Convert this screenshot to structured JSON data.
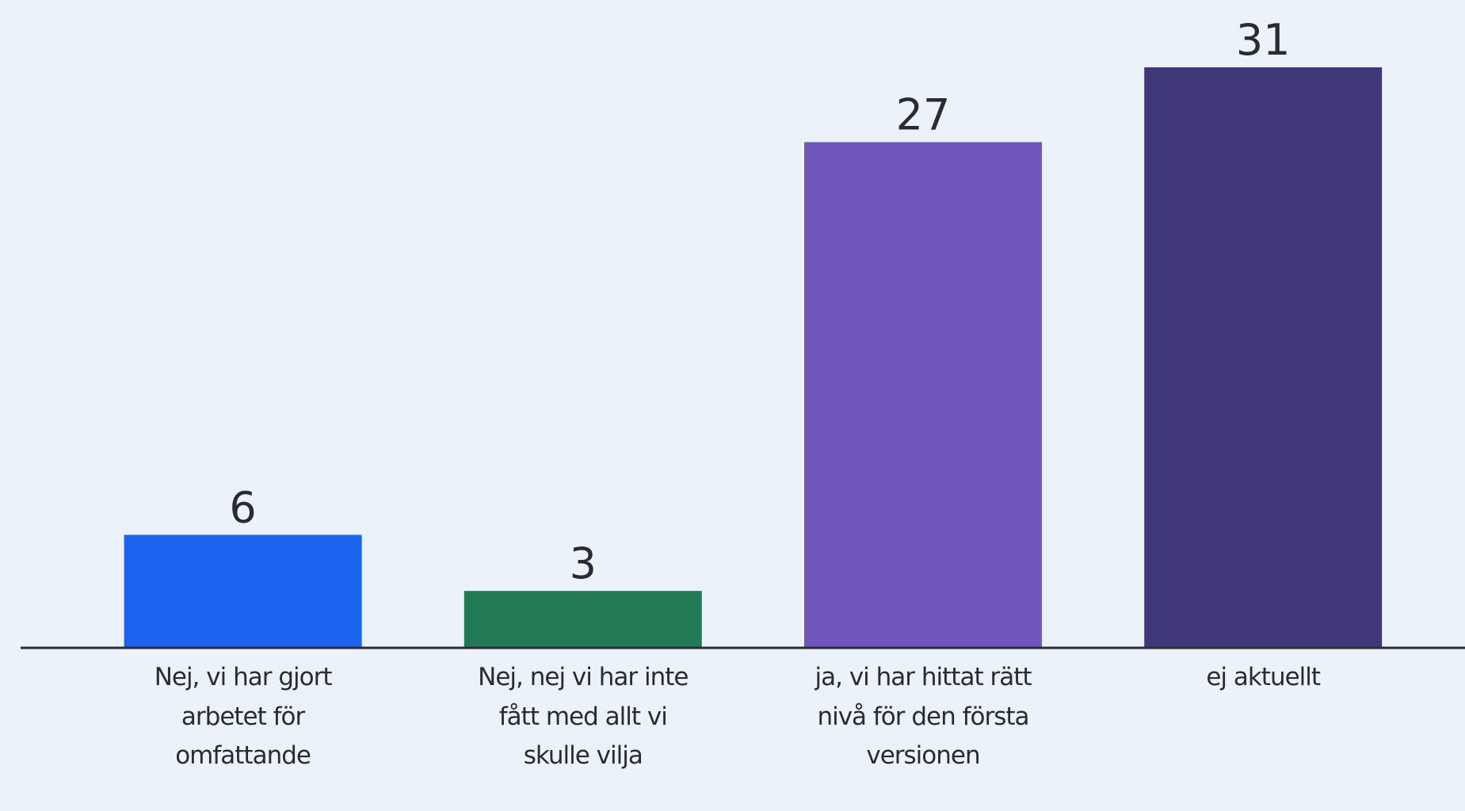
{
  "chart_data": {
    "type": "bar",
    "categories": [
      "Nej, vi har gjort arbetet för omfattande",
      "Nej, nej vi har inte fått med allt vi skulle vilja",
      "ja, vi har hittat rätt nivå för den första versionen",
      "ej aktuellt"
    ],
    "values": [
      6,
      3,
      27,
      31
    ],
    "colors": [
      "#1a64f0",
      "#227a55",
      "#7055bd",
      "#41387a"
    ],
    "ylim": [
      0,
      34.6
    ]
  }
}
